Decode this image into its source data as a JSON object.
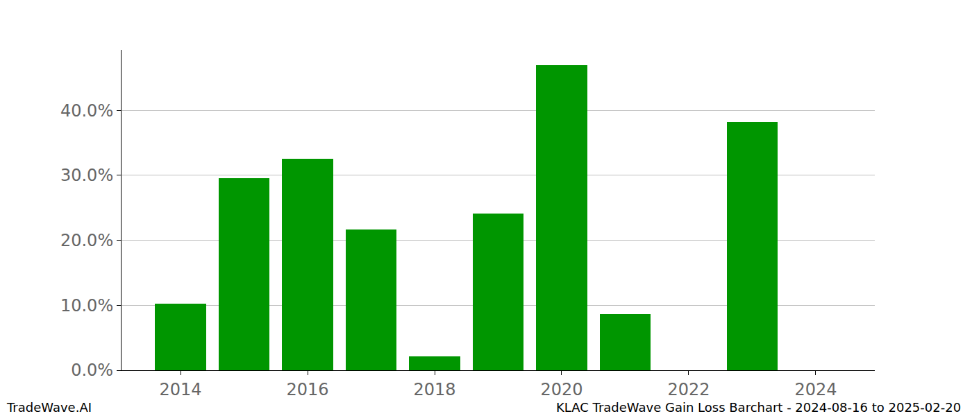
{
  "chart_data": {
    "type": "bar",
    "x": [
      2014,
      2015,
      2016,
      2017,
      2018,
      2019,
      2020,
      2021,
      2022,
      2023,
      2024
    ],
    "values": [
      10.2,
      29.6,
      32.5,
      21.7,
      2.1,
      24.1,
      46.9,
      8.6,
      0,
      38.2,
      0
    ],
    "color": "#009600",
    "xlim": [
      2013.07,
      2024.93
    ],
    "xticks": [
      2014,
      2016,
      2018,
      2020,
      2022,
      2024
    ],
    "ylim": [
      0,
      49.3
    ],
    "yticks": [
      {
        "value": 0,
        "label": "0.0%"
      },
      {
        "value": 10,
        "label": "10.0%"
      },
      {
        "value": 20,
        "label": "20.0%"
      },
      {
        "value": 30,
        "label": "30.0%"
      },
      {
        "value": 40,
        "label": "40.0%"
      }
    ],
    "grid": true,
    "annotations": [
      "TradeWave.AI",
      "KLAC TradeWave Gain Loss Barchart - 2024-08-16 to 2025-02-20"
    ]
  }
}
